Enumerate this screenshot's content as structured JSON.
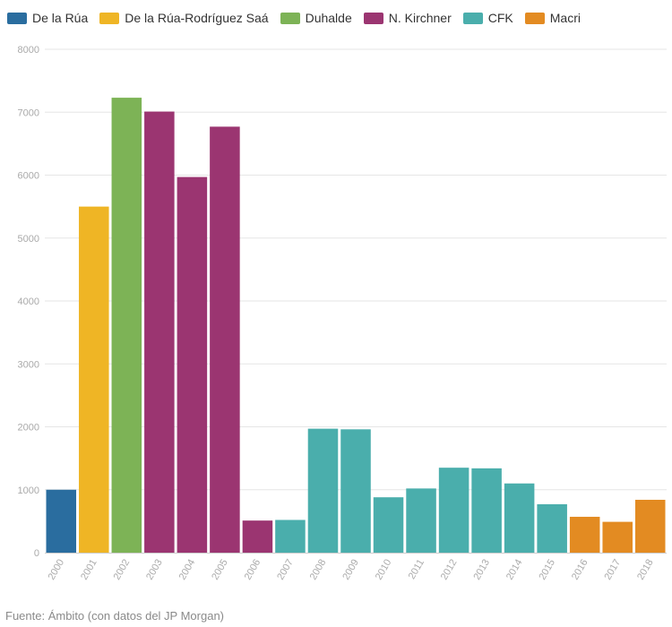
{
  "chart_data": {
    "type": "bar",
    "title": "",
    "xlabel": "",
    "ylabel": "",
    "ylim": [
      0,
      8000
    ],
    "yticks": [
      0,
      1000,
      2000,
      3000,
      4000,
      5000,
      6000,
      7000,
      8000
    ],
    "grid": true,
    "legend_position": "top-left",
    "categories": [
      "2000",
      "2001",
      "2002",
      "2003",
      "2004",
      "2005",
      "2006",
      "2007",
      "2008",
      "2009",
      "2010",
      "2011",
      "2012",
      "2013",
      "2014",
      "2015",
      "2016",
      "2017",
      "2018"
    ],
    "values": [
      1000,
      5500,
      7230,
      7010,
      5970,
      6770,
      510,
      520,
      1970,
      1960,
      880,
      1020,
      1350,
      1340,
      1100,
      770,
      570,
      490,
      840
    ],
    "bar_groups": [
      "De la Rúa",
      "De la Rúa-Rodríguez Saá",
      "Duhalde",
      "N. Kirchner",
      "N. Kirchner",
      "N. Kirchner",
      "N. Kirchner",
      "CFK",
      "CFK",
      "CFK",
      "CFK",
      "CFK",
      "CFK",
      "CFK",
      "CFK",
      "CFK",
      "Macri",
      "Macri",
      "Macri"
    ],
    "legend": [
      {
        "name": "De la Rúa",
        "color": "#2a6d9f"
      },
      {
        "name": "De la Rúa-Rodríguez Saá",
        "color": "#efb525"
      },
      {
        "name": "Duhalde",
        "color": "#7db356"
      },
      {
        "name": "N. Kirchner",
        "color": "#9b3571"
      },
      {
        "name": "CFK",
        "color": "#4aaeac"
      },
      {
        "name": "Macri",
        "color": "#e38b22"
      }
    ]
  },
  "source": "Fuente: Ámbito (con datos del JP Morgan)",
  "colors": {
    "grid": "#e6e6e6",
    "axis_text": "#aaaaaa",
    "axis_line": "#cccccc"
  }
}
